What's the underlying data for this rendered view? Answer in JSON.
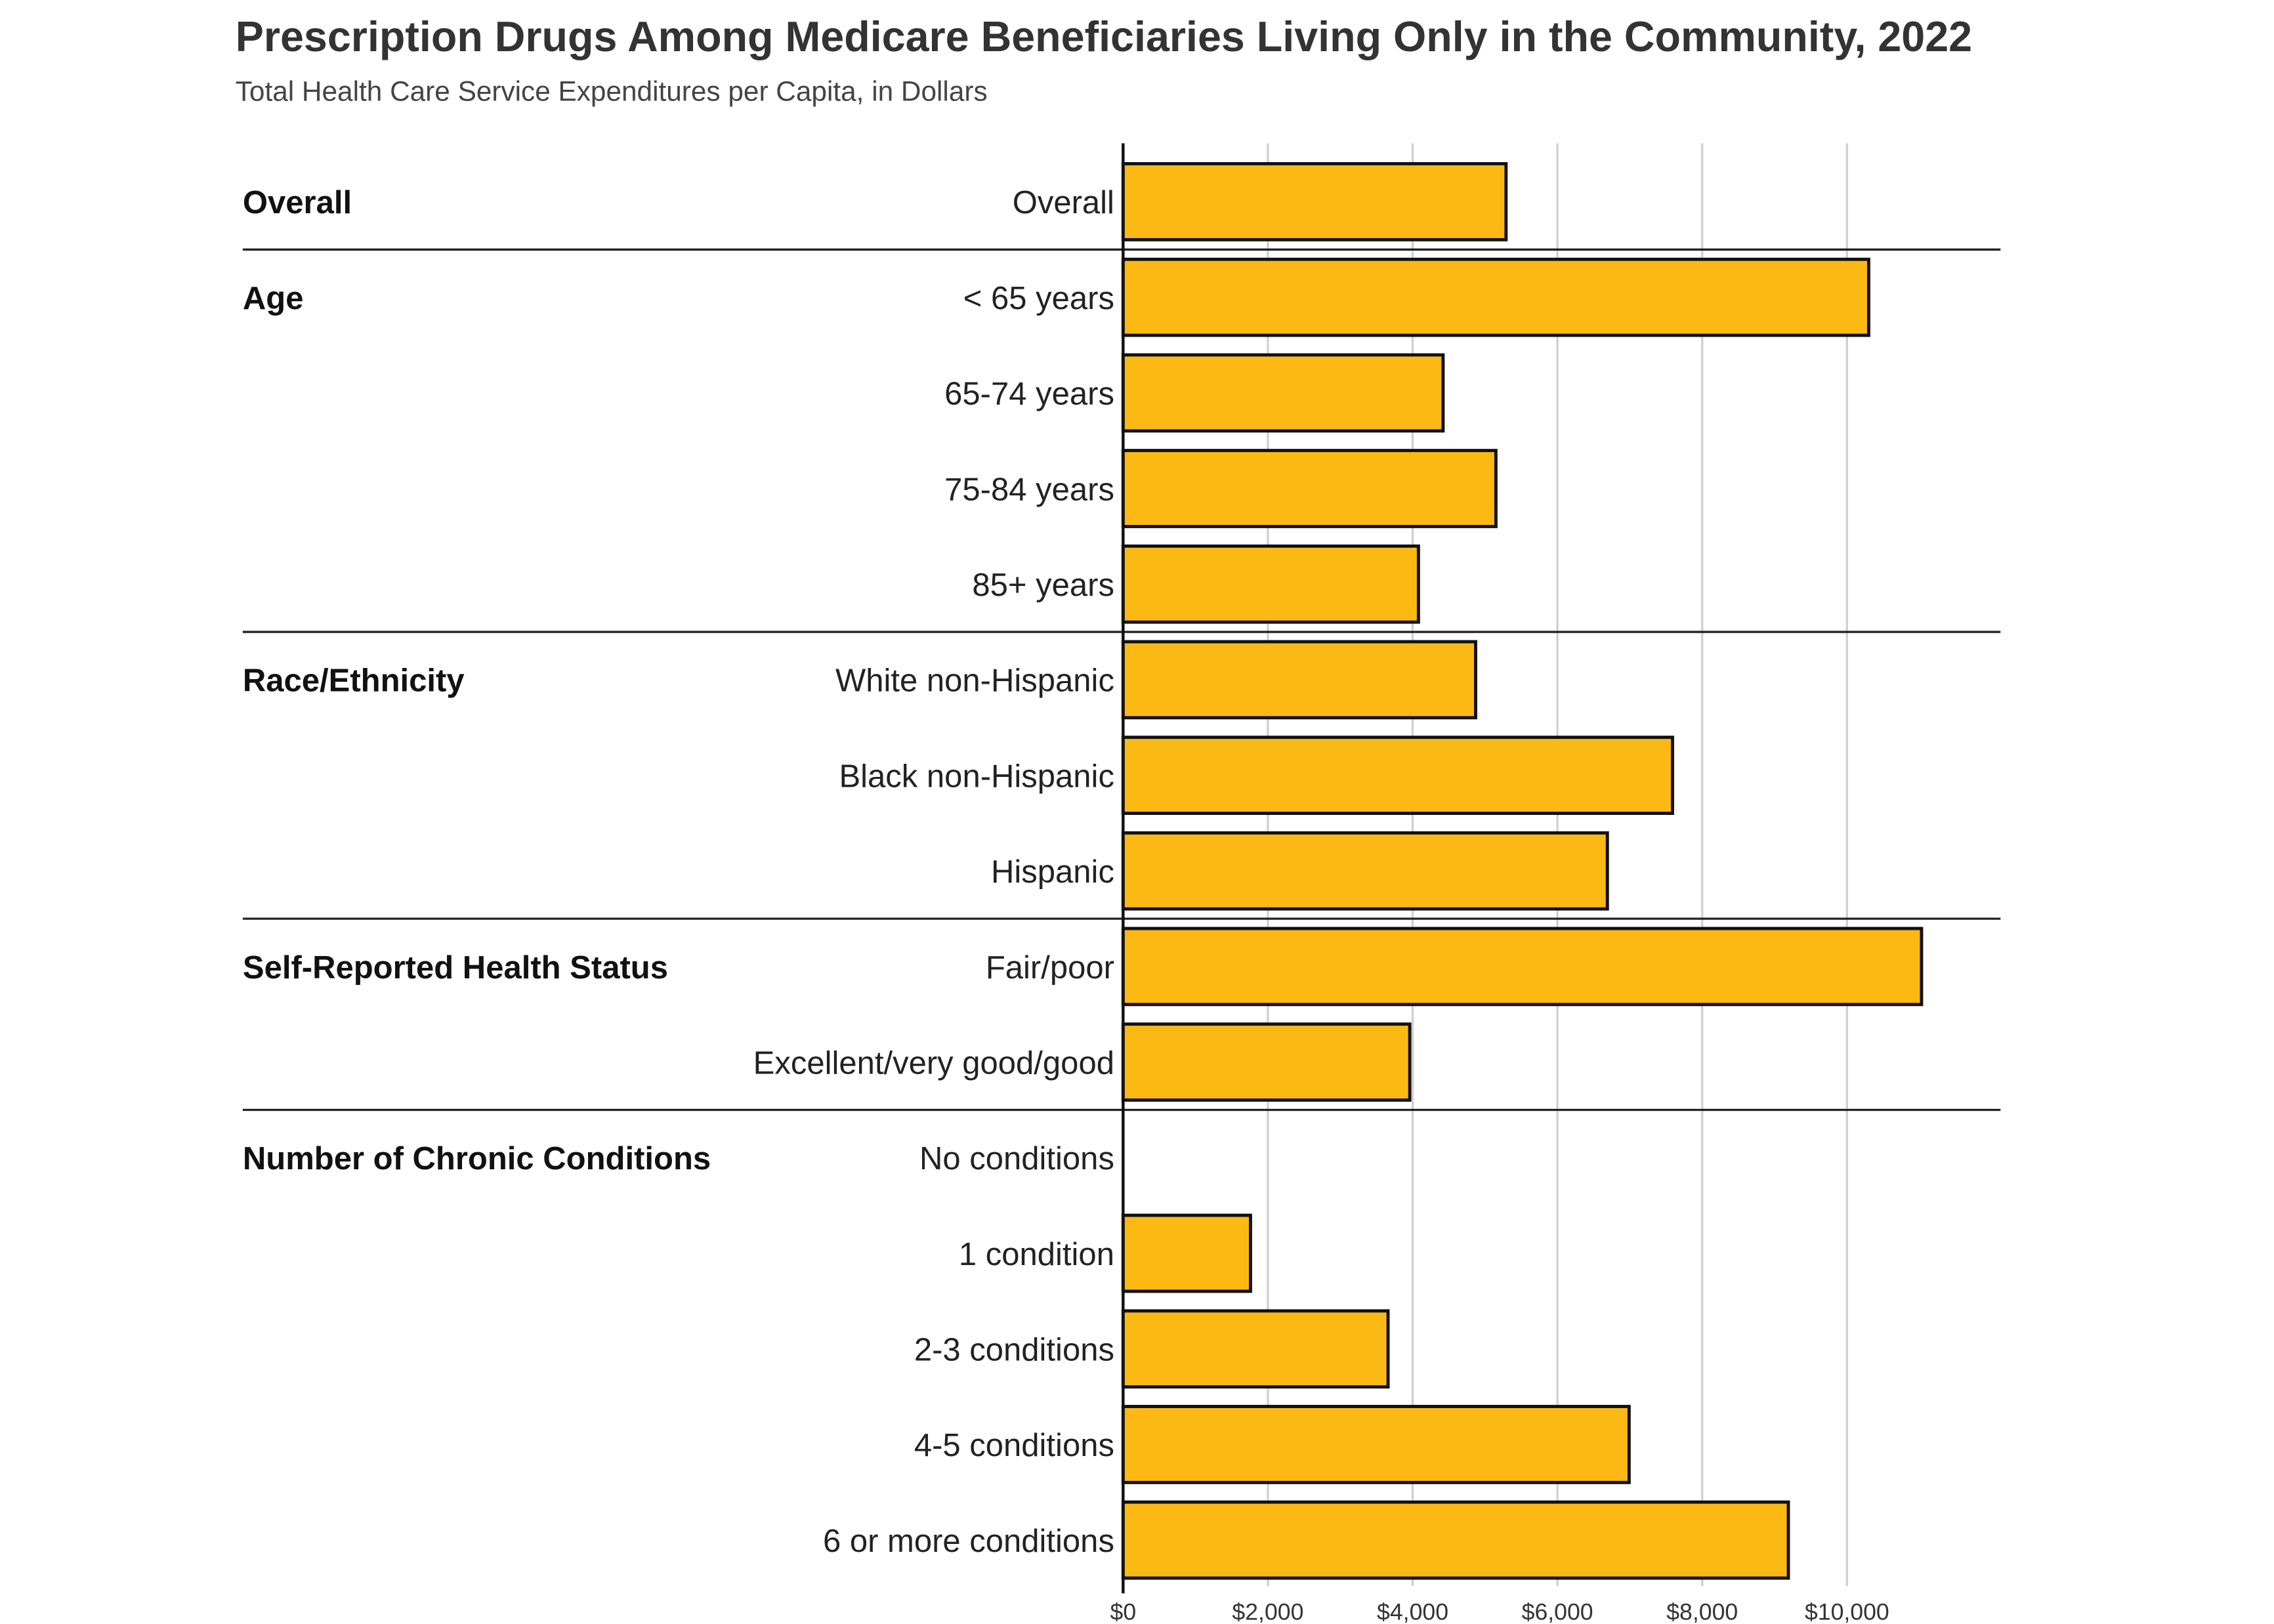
{
  "chart_data": {
    "type": "bar",
    "orientation": "horizontal",
    "title": "Prescription Drugs Among Medicare Beneficiaries Living Only in the Community, 2022",
    "subtitle": "Total Health Care Service Expenditures per Capita, in Dollars",
    "xlabel": "",
    "ylabel": "",
    "xlim": [
      0,
      12000
    ],
    "x_ticks": [
      "$0",
      "$2,000",
      "$4,000",
      "$6,000",
      "$8,000",
      "$10,000"
    ],
    "x_tick_values": [
      0,
      2000,
      4000,
      6000,
      8000,
      10000
    ],
    "grid": true,
    "bar_color": "#FDB913",
    "bar_outline": "#111111",
    "groups": [
      {
        "label": "Overall",
        "categories": [
          "Overall"
        ],
        "values": [
          5290
        ]
      },
      {
        "label": "Age",
        "categories": [
          "< 65 years",
          "65-74 years",
          "75-84 years",
          "85+ years"
        ],
        "values": [
          10300,
          4420,
          5150,
          4080
        ]
      },
      {
        "label": "Race/Ethnicity",
        "categories": [
          "White non-Hispanic",
          "Black non-Hispanic",
          "Hispanic"
        ],
        "values": [
          4870,
          7590,
          6690
        ]
      },
      {
        "label": "Self-Reported Health Status",
        "categories": [
          "Fair/poor",
          "Excellent/very good/good"
        ],
        "values": [
          11030,
          3960
        ]
      },
      {
        "label": "Number of Chronic Conditions",
        "categories": [
          "No conditions",
          "1 condition",
          "2-3 conditions",
          "4-5 conditions",
          "6 or more conditions"
        ],
        "values": [
          null,
          1760,
          3660,
          6990,
          9190
        ]
      }
    ]
  }
}
